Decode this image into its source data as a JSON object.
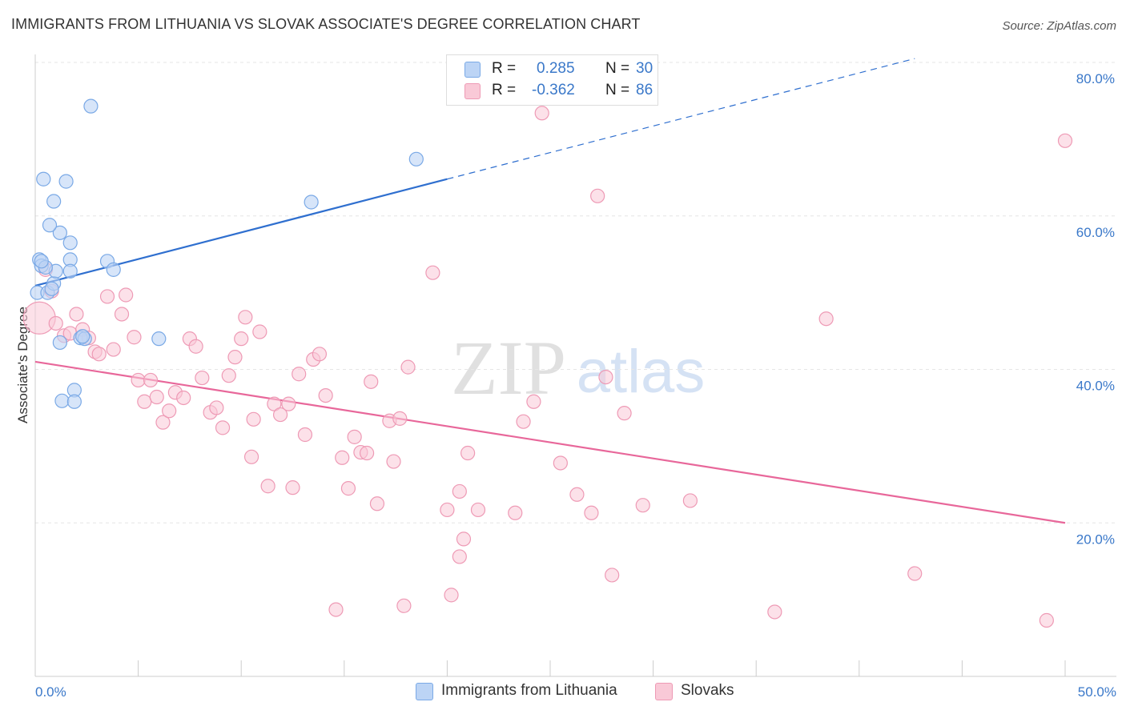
{
  "header": {
    "title": "IMMIGRANTS FROM LITHUANIA VS SLOVAK ASSOCIATE'S DEGREE CORRELATION CHART",
    "source": "Source: ZipAtlas.com"
  },
  "watermark": {
    "zip": "ZIP",
    "atlas": "atlas"
  },
  "legend": {
    "r_label": "R =",
    "n_label": "N =",
    "rows": [
      {
        "series": "Immigrants from Lithuania",
        "r": "0.285",
        "n": "30",
        "color": "#7aa9e6"
      },
      {
        "series": "Slovaks",
        "r": "-0.362",
        "n": "86",
        "color": "#f4a3bd"
      }
    ]
  },
  "colors": {
    "blue_fill": "#bcd4f5",
    "blue_stroke": "#7aa9e6",
    "blue_line": "#2f6fcf",
    "pink_fill": "#f9c9d7",
    "pink_stroke": "#ee9ab5",
    "pink_line": "#e8679a",
    "tick_text": "#3a78c9",
    "grid": "#e6e6e6"
  },
  "chart_data": {
    "type": "scatter",
    "title": "IMMIGRANTS FROM LITHUANIA VS SLOVAK ASSOCIATE'S DEGREE CORRELATION CHART",
    "ylabel": "Associate's Degree",
    "xlabel": "",
    "xlim": [
      0,
      50
    ],
    "ylim": [
      0,
      80
    ],
    "x_tick_labels": [
      "0.0%",
      "50.0%"
    ],
    "y_ticks": [
      20,
      40,
      60,
      80
    ],
    "y_tick_labels": [
      "20.0%",
      "40.0%",
      "60.0%",
      "80.0%"
    ],
    "grid": true,
    "legend_position": "top-center",
    "series": [
      {
        "name": "Immigrants from Lithuania",
        "trend": {
          "x": [
            0,
            20
          ],
          "y": [
            50.9,
            64.8
          ],
          "dashed_to": [
            42.7,
            80.5
          ]
        },
        "points": [
          [
            0.2,
            54.3
          ],
          [
            0.3,
            53.5
          ],
          [
            0.1,
            50.0
          ],
          [
            0.6,
            50.0
          ],
          [
            0.9,
            51.2
          ],
          [
            0.4,
            64.8
          ],
          [
            0.9,
            61.9
          ],
          [
            1.2,
            57.8
          ],
          [
            0.7,
            58.8
          ],
          [
            1.5,
            64.5
          ],
          [
            1.7,
            56.5
          ],
          [
            1.7,
            54.3
          ],
          [
            1.0,
            52.8
          ],
          [
            1.7,
            52.8
          ],
          [
            2.7,
            74.3
          ],
          [
            3.5,
            54.1
          ],
          [
            3.8,
            53.0
          ],
          [
            1.2,
            43.5
          ],
          [
            2.2,
            44.1
          ],
          [
            2.4,
            44.0
          ],
          [
            6.0,
            44.0
          ],
          [
            1.9,
            37.3
          ],
          [
            1.3,
            35.9
          ],
          [
            1.9,
            35.8
          ],
          [
            13.4,
            61.8
          ],
          [
            18.5,
            67.4
          ],
          [
            0.5,
            53.3
          ],
          [
            0.8,
            50.5
          ],
          [
            2.3,
            44.3
          ],
          [
            0.3,
            54.1
          ]
        ]
      },
      {
        "name": "Slovaks",
        "trend": {
          "x": [
            0,
            50
          ],
          "y": [
            41.0,
            20.0
          ]
        },
        "points": [
          [
            0.2,
            46.7
          ],
          [
            0.5,
            53.0
          ],
          [
            1.0,
            46.0
          ],
          [
            0.8,
            50.2
          ],
          [
            1.4,
            44.4
          ],
          [
            1.7,
            44.7
          ],
          [
            2.0,
            47.2
          ],
          [
            2.3,
            45.2
          ],
          [
            2.6,
            44.1
          ],
          [
            2.9,
            42.3
          ],
          [
            3.1,
            42.0
          ],
          [
            3.5,
            49.5
          ],
          [
            3.8,
            42.6
          ],
          [
            4.2,
            47.2
          ],
          [
            4.4,
            49.7
          ],
          [
            4.8,
            44.2
          ],
          [
            5.0,
            38.6
          ],
          [
            5.3,
            35.8
          ],
          [
            5.6,
            38.6
          ],
          [
            5.9,
            36.4
          ],
          [
            6.2,
            33.1
          ],
          [
            6.5,
            34.6
          ],
          [
            6.8,
            37.0
          ],
          [
            7.2,
            36.3
          ],
          [
            7.5,
            44.0
          ],
          [
            7.8,
            43.0
          ],
          [
            8.1,
            38.9
          ],
          [
            8.5,
            34.4
          ],
          [
            8.8,
            35.0
          ],
          [
            9.1,
            32.4
          ],
          [
            9.4,
            39.2
          ],
          [
            9.7,
            41.6
          ],
          [
            10.0,
            44.0
          ],
          [
            10.2,
            46.8
          ],
          [
            10.5,
            28.6
          ],
          [
            10.6,
            33.5
          ],
          [
            10.9,
            44.9
          ],
          [
            11.3,
            24.8
          ],
          [
            11.6,
            35.5
          ],
          [
            11.9,
            34.1
          ],
          [
            12.3,
            35.5
          ],
          [
            12.5,
            24.6
          ],
          [
            12.8,
            39.4
          ],
          [
            13.1,
            31.5
          ],
          [
            13.5,
            41.3
          ],
          [
            13.8,
            42.0
          ],
          [
            14.1,
            36.6
          ],
          [
            14.6,
            8.7
          ],
          [
            14.9,
            28.5
          ],
          [
            15.2,
            24.5
          ],
          [
            15.5,
            31.2
          ],
          [
            15.8,
            29.2
          ],
          [
            16.1,
            29.1
          ],
          [
            16.3,
            38.4
          ],
          [
            16.6,
            22.5
          ],
          [
            17.2,
            33.3
          ],
          [
            17.4,
            28.0
          ],
          [
            17.7,
            33.6
          ],
          [
            17.9,
            9.2
          ],
          [
            18.1,
            40.3
          ],
          [
            19.3,
            52.6
          ],
          [
            20.0,
            21.7
          ],
          [
            20.2,
            10.6
          ],
          [
            20.6,
            15.6
          ],
          [
            20.8,
            17.9
          ],
          [
            20.6,
            24.1
          ],
          [
            21.0,
            29.1
          ],
          [
            21.5,
            21.7
          ],
          [
            23.3,
            21.3
          ],
          [
            23.7,
            33.2
          ],
          [
            24.2,
            35.8
          ],
          [
            24.6,
            73.4
          ],
          [
            25.5,
            27.8
          ],
          [
            26.3,
            23.7
          ],
          [
            27.3,
            62.6
          ],
          [
            27.0,
            21.3
          ],
          [
            27.7,
            39.0
          ],
          [
            28.0,
            13.2
          ],
          [
            28.6,
            34.3
          ],
          [
            29.5,
            22.3
          ],
          [
            31.8,
            22.9
          ],
          [
            35.9,
            8.4
          ],
          [
            38.4,
            46.6
          ],
          [
            42.7,
            13.4
          ],
          [
            49.1,
            7.3
          ],
          [
            50.0,
            69.8
          ]
        ]
      }
    ]
  }
}
